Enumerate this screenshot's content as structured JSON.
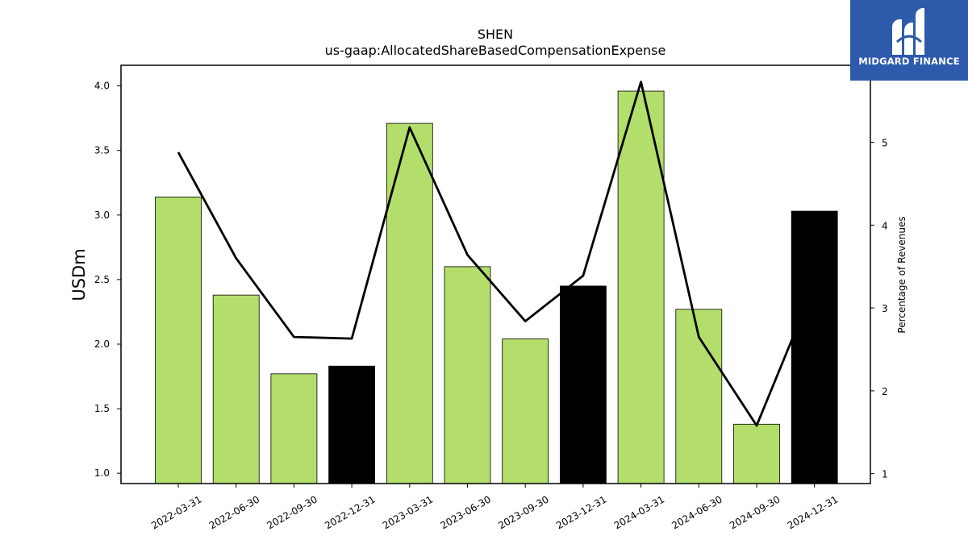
{
  "chart_data": {
    "type": "bar",
    "title": "SHEN",
    "subtitle": "us-gaap:AllocatedShareBasedCompensationExpense",
    "ylabel": "USDm",
    "ylabel_right": "Percentage of Revenues",
    "ylim": [
      0.92,
      4.16
    ],
    "ylim_right": [
      0.88,
      5.93
    ],
    "yticks": [
      "1.0",
      "1.5",
      "2.0",
      "2.5",
      "3.0",
      "3.5",
      "4.0"
    ],
    "yticks_right": [
      "1",
      "2",
      "3",
      "4",
      "5"
    ],
    "categories": [
      "2022-03-31",
      "2022-06-30",
      "2022-09-30",
      "2022-12-31",
      "2023-03-31",
      "2023-06-30",
      "2023-09-30",
      "2023-12-31",
      "2024-03-31",
      "2024-06-30",
      "2024-09-30",
      "2024-12-31"
    ],
    "series": [
      {
        "type": "bar",
        "values": [
          3.14,
          2.38,
          1.77,
          1.83,
          3.71,
          2.6,
          2.04,
          2.45,
          3.96,
          2.27,
          1.38,
          3.03
        ],
        "colors": [
          "#b3de6b",
          "#b3de6b",
          "#b3de6b",
          "#000000",
          "#b3de6b",
          "#b3de6b",
          "#b3de6b",
          "#000000",
          "#b3de6b",
          "#b3de6b",
          "#b3de6b",
          "#000000"
        ]
      },
      {
        "type": "line",
        "axis": "right",
        "values": [
          4.88,
          3.6,
          2.65,
          2.63,
          5.18,
          3.64,
          2.84,
          3.39,
          5.73,
          2.65,
          1.58,
          3.28
        ],
        "color": "#000000"
      }
    ],
    "grid": false,
    "legend": "none"
  },
  "logo": {
    "text": "MIDGARD FINANCE",
    "background": "#2d5aab"
  }
}
